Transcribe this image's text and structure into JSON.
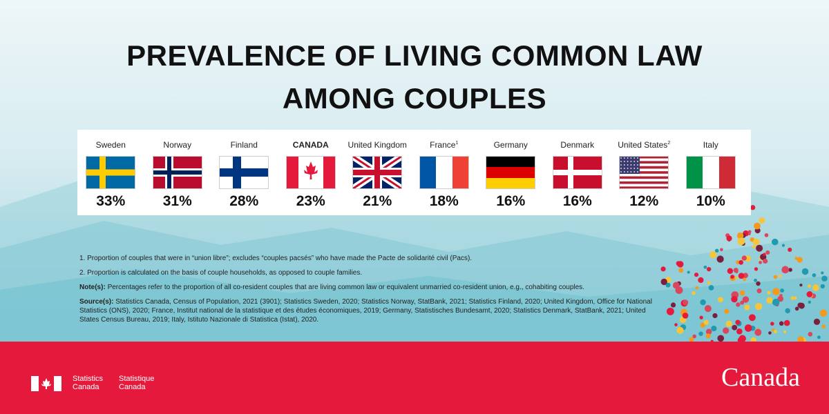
{
  "title": "PREVALENCE OF LIVING COMMON LAW AMONG COUPLES",
  "countries": [
    {
      "name": "Sweden",
      "value": "33%"
    },
    {
      "name": "Norway",
      "value": "31%"
    },
    {
      "name": "Finland",
      "value": "28%"
    },
    {
      "name": "CANADA",
      "value": "23%"
    },
    {
      "name": "United Kingdom",
      "value": "21%"
    },
    {
      "name": "France",
      "note": "1",
      "value": "18%"
    },
    {
      "name": "Germany",
      "value": "16%"
    },
    {
      "name": "Denmark",
      "value": "16%"
    },
    {
      "name": "United States",
      "note": "2",
      "value": "12%"
    },
    {
      "name": "Italy",
      "value": "10%"
    }
  ],
  "footnotes": [
    "1. Proportion of couples that were in “union libre”; excludes “couples pacsés” who have made the Pacte de solidarité civil (Pacs).",
    "2. Proportion is calculated on the basis of couple households, as opposed to couple families."
  ],
  "note_label": "Note(s):",
  "note_text": "Percentages refer to the proportion of all co-resident couples that are living common law or equivalent unmarried co-resident union, e.g., cohabiting couples.",
  "source_label": "Source(s):",
  "source_text": "Statistics Canada, Census of Population, 2021 (3901); Statistics Sweden, 2020; Statistics Norway, StatBank, 2021; Statistics Finland, 2020; United Kingdom, Office for National Statistics (ONS), 2020; France, Institut national de la statistique et des études économiques, 2019; Germany, Statistisches Bundesamt, 2020; Statistics Denmark, StatBank, 2021; United States Census Bureau, 2019; Italy, Istituto Nazionale di Statistica (Istat), 2020.",
  "footer": {
    "agency_en": [
      "Statistics",
      "Canada"
    ],
    "agency_fr": [
      "Statistique",
      "Canada"
    ],
    "wordmark": "Canada"
  }
}
